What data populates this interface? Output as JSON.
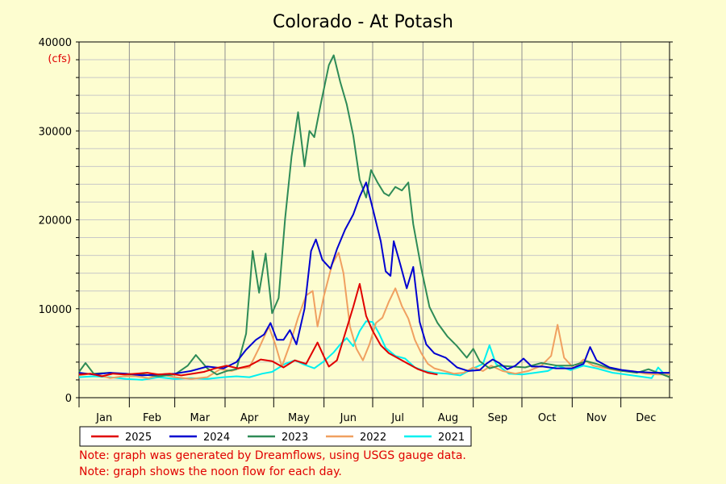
{
  "chart_data": {
    "type": "line",
    "title": "Colorado - At Potash",
    "y_unit": "(cfs)",
    "ylim": [
      0,
      40000
    ],
    "y_ticks": [
      0,
      10000,
      20000,
      30000,
      40000
    ],
    "x_ticks": [
      "Jan",
      "Feb",
      "Mar",
      "Apr",
      "May",
      "Jun",
      "Jul",
      "Aug",
      "Sep",
      "Oct",
      "Nov",
      "Dec"
    ],
    "xlim_day_of_year": [
      1,
      365
    ],
    "grid": true,
    "legend_position": "bottom",
    "series": [
      {
        "name": "2025",
        "color": "#e00000",
        "points": [
          [
            1,
            2600
          ],
          [
            8,
            2700
          ],
          [
            15,
            2400
          ],
          [
            22,
            2700
          ],
          [
            29,
            2600
          ],
          [
            36,
            2700
          ],
          [
            43,
            2800
          ],
          [
            50,
            2600
          ],
          [
            57,
            2700
          ],
          [
            64,
            2500
          ],
          [
            71,
            2700
          ],
          [
            78,
            2900
          ],
          [
            85,
            3300
          ],
          [
            92,
            3600
          ],
          [
            99,
            3300
          ],
          [
            106,
            3600
          ],
          [
            113,
            4300
          ],
          [
            120,
            4100
          ],
          [
            127,
            3400
          ],
          [
            134,
            4200
          ],
          [
            141,
            3800
          ],
          [
            148,
            6200
          ],
          [
            152,
            4600
          ],
          [
            155,
            3500
          ],
          [
            160,
            4200
          ],
          [
            165,
            7200
          ],
          [
            170,
            10200
          ],
          [
            174,
            12800
          ],
          [
            178,
            9200
          ],
          [
            182,
            7500
          ],
          [
            187,
            5900
          ],
          [
            192,
            5000
          ],
          [
            198,
            4400
          ],
          [
            204,
            3800
          ],
          [
            210,
            3200
          ],
          [
            216,
            2800
          ],
          [
            222,
            2600
          ]
        ]
      },
      {
        "name": "2024",
        "color": "#0000d0",
        "points": [
          [
            1,
            2800
          ],
          [
            10,
            2600
          ],
          [
            20,
            2800
          ],
          [
            30,
            2700
          ],
          [
            40,
            2500
          ],
          [
            50,
            2600
          ],
          [
            60,
            2700
          ],
          [
            70,
            3000
          ],
          [
            80,
            3500
          ],
          [
            90,
            3300
          ],
          [
            98,
            4000
          ],
          [
            104,
            5400
          ],
          [
            110,
            6500
          ],
          [
            115,
            7100
          ],
          [
            119,
            8400
          ],
          [
            123,
            6500
          ],
          [
            127,
            6500
          ],
          [
            131,
            7600
          ],
          [
            135,
            6000
          ],
          [
            140,
            10000
          ],
          [
            144,
            16500
          ],
          [
            147,
            17800
          ],
          [
            151,
            15500
          ],
          [
            156,
            14500
          ],
          [
            160,
            16700
          ],
          [
            165,
            18900
          ],
          [
            170,
            20600
          ],
          [
            174,
            22600
          ],
          [
            178,
            24200
          ],
          [
            182,
            21300
          ],
          [
            187,
            17600
          ],
          [
            190,
            14200
          ],
          [
            193,
            13700
          ],
          [
            195,
            17600
          ],
          [
            199,
            15000
          ],
          [
            203,
            12300
          ],
          [
            207,
            14700
          ],
          [
            211,
            8500
          ],
          [
            215,
            6000
          ],
          [
            220,
            5000
          ],
          [
            227,
            4500
          ],
          [
            234,
            3400
          ],
          [
            241,
            3000
          ],
          [
            248,
            3100
          ],
          [
            252,
            3800
          ],
          [
            256,
            4300
          ],
          [
            260,
            3900
          ],
          [
            265,
            3200
          ],
          [
            270,
            3600
          ],
          [
            275,
            4400
          ],
          [
            280,
            3500
          ],
          [
            287,
            3500
          ],
          [
            295,
            3300
          ],
          [
            305,
            3300
          ],
          [
            312,
            3800
          ],
          [
            316,
            5700
          ],
          [
            320,
            4200
          ],
          [
            328,
            3400
          ],
          [
            336,
            3100
          ],
          [
            345,
            2900
          ],
          [
            356,
            2800
          ],
          [
            365,
            2800
          ]
        ]
      },
      {
        "name": "2023",
        "color": "#2e8b57",
        "points": [
          [
            1,
            2900
          ],
          [
            5,
            3900
          ],
          [
            10,
            2700
          ],
          [
            20,
            2800
          ],
          [
            30,
            2600
          ],
          [
            40,
            2600
          ],
          [
            50,
            2400
          ],
          [
            60,
            2600
          ],
          [
            68,
            3600
          ],
          [
            73,
            4800
          ],
          [
            80,
            3300
          ],
          [
            86,
            2600
          ],
          [
            92,
            3000
          ],
          [
            98,
            3200
          ],
          [
            104,
            7200
          ],
          [
            108,
            16500
          ],
          [
            112,
            11800
          ],
          [
            116,
            16200
          ],
          [
            120,
            9500
          ],
          [
            124,
            11200
          ],
          [
            128,
            20100
          ],
          [
            132,
            27100
          ],
          [
            136,
            32100
          ],
          [
            140,
            26000
          ],
          [
            143,
            30000
          ],
          [
            146,
            29300
          ],
          [
            150,
            33000
          ],
          [
            155,
            37400
          ],
          [
            158,
            38500
          ],
          [
            162,
            35500
          ],
          [
            166,
            33000
          ],
          [
            170,
            29500
          ],
          [
            174,
            24500
          ],
          [
            178,
            22500
          ],
          [
            181,
            25600
          ],
          [
            185,
            24200
          ],
          [
            189,
            23000
          ],
          [
            192,
            22700
          ],
          [
            196,
            23700
          ],
          [
            200,
            23300
          ],
          [
            204,
            24200
          ],
          [
            207,
            19500
          ],
          [
            212,
            14500
          ],
          [
            217,
            10200
          ],
          [
            222,
            8400
          ],
          [
            228,
            6900
          ],
          [
            234,
            5800
          ],
          [
            240,
            4500
          ],
          [
            244,
            5500
          ],
          [
            248,
            4100
          ],
          [
            254,
            3300
          ],
          [
            260,
            3600
          ],
          [
            268,
            3500
          ],
          [
            276,
            3400
          ],
          [
            286,
            3900
          ],
          [
            296,
            3600
          ],
          [
            305,
            3600
          ],
          [
            314,
            4100
          ],
          [
            320,
            3800
          ],
          [
            328,
            3300
          ],
          [
            336,
            3000
          ],
          [
            345,
            2800
          ],
          [
            352,
            3200
          ],
          [
            358,
            2800
          ],
          [
            365,
            2300
          ]
        ]
      },
      {
        "name": "2022",
        "color": "#f0a060",
        "points": [
          [
            1,
            2500
          ],
          [
            8,
            2700
          ],
          [
            14,
            2500
          ],
          [
            20,
            2200
          ],
          [
            28,
            2400
          ],
          [
            36,
            2400
          ],
          [
            44,
            2200
          ],
          [
            52,
            2600
          ],
          [
            60,
            2300
          ],
          [
            70,
            2100
          ],
          [
            80,
            2300
          ],
          [
            88,
            3200
          ],
          [
            95,
            3000
          ],
          [
            100,
            3300
          ],
          [
            106,
            3400
          ],
          [
            112,
            5600
          ],
          [
            118,
            8000
          ],
          [
            122,
            6000
          ],
          [
            126,
            3500
          ],
          [
            131,
            6000
          ],
          [
            136,
            9000
          ],
          [
            141,
            11500
          ],
          [
            145,
            12000
          ],
          [
            148,
            8000
          ],
          [
            152,
            11500
          ],
          [
            157,
            15000
          ],
          [
            161,
            16300
          ],
          [
            164,
            14000
          ],
          [
            168,
            8000
          ],
          [
            172,
            5500
          ],
          [
            176,
            4200
          ],
          [
            180,
            6000
          ],
          [
            184,
            8400
          ],
          [
            188,
            9000
          ],
          [
            192,
            10800
          ],
          [
            196,
            12300
          ],
          [
            200,
            10300
          ],
          [
            204,
            8900
          ],
          [
            208,
            6500
          ],
          [
            212,
            5000
          ],
          [
            216,
            3800
          ],
          [
            220,
            3300
          ],
          [
            226,
            3000
          ],
          [
            232,
            2700
          ],
          [
            238,
            2800
          ],
          [
            244,
            3400
          ],
          [
            250,
            3000
          ],
          [
            255,
            3600
          ],
          [
            262,
            3000
          ],
          [
            270,
            2700
          ],
          [
            278,
            3000
          ],
          [
            286,
            3600
          ],
          [
            292,
            4700
          ],
          [
            296,
            8200
          ],
          [
            300,
            4500
          ],
          [
            306,
            3300
          ],
          [
            312,
            4300
          ],
          [
            318,
            3600
          ],
          [
            326,
            3300
          ],
          [
            334,
            3000
          ],
          [
            342,
            3000
          ],
          [
            350,
            2700
          ],
          [
            358,
            2600
          ],
          [
            365,
            2600
          ]
        ]
      },
      {
        "name": "2021",
        "color": "#00f0f0",
        "points": [
          [
            1,
            2300
          ],
          [
            10,
            2400
          ],
          [
            20,
            2300
          ],
          [
            30,
            2100
          ],
          [
            40,
            2000
          ],
          [
            50,
            2300
          ],
          [
            60,
            2100
          ],
          [
            70,
            2200
          ],
          [
            80,
            2100
          ],
          [
            90,
            2300
          ],
          [
            98,
            2400
          ],
          [
            106,
            2300
          ],
          [
            114,
            2700
          ],
          [
            120,
            2900
          ],
          [
            128,
            3800
          ],
          [
            134,
            4200
          ],
          [
            140,
            3700
          ],
          [
            146,
            3300
          ],
          [
            152,
            4100
          ],
          [
            158,
            5100
          ],
          [
            162,
            6000
          ],
          [
            166,
            6700
          ],
          [
            170,
            5800
          ],
          [
            174,
            7500
          ],
          [
            178,
            8600
          ],
          [
            182,
            8500
          ],
          [
            186,
            7200
          ],
          [
            190,
            5600
          ],
          [
            196,
            4700
          ],
          [
            202,
            4400
          ],
          [
            208,
            3400
          ],
          [
            214,
            3000
          ],
          [
            220,
            2800
          ],
          [
            228,
            2700
          ],
          [
            236,
            2500
          ],
          [
            244,
            3300
          ],
          [
            250,
            3800
          ],
          [
            254,
            5900
          ],
          [
            258,
            3800
          ],
          [
            266,
            2700
          ],
          [
            274,
            2600
          ],
          [
            282,
            2800
          ],
          [
            290,
            3000
          ],
          [
            296,
            3600
          ],
          [
            304,
            3100
          ],
          [
            312,
            3600
          ],
          [
            320,
            3300
          ],
          [
            330,
            2800
          ],
          [
            338,
            2600
          ],
          [
            346,
            2400
          ],
          [
            354,
            2200
          ],
          [
            358,
            3400
          ],
          [
            362,
            2600
          ],
          [
            365,
            2600
          ]
        ]
      }
    ]
  },
  "notes": [
    "Note: graph was generated by Dreamflows, using USGS gauge data.",
    "Note: graph shows the noon flow for each day."
  ]
}
